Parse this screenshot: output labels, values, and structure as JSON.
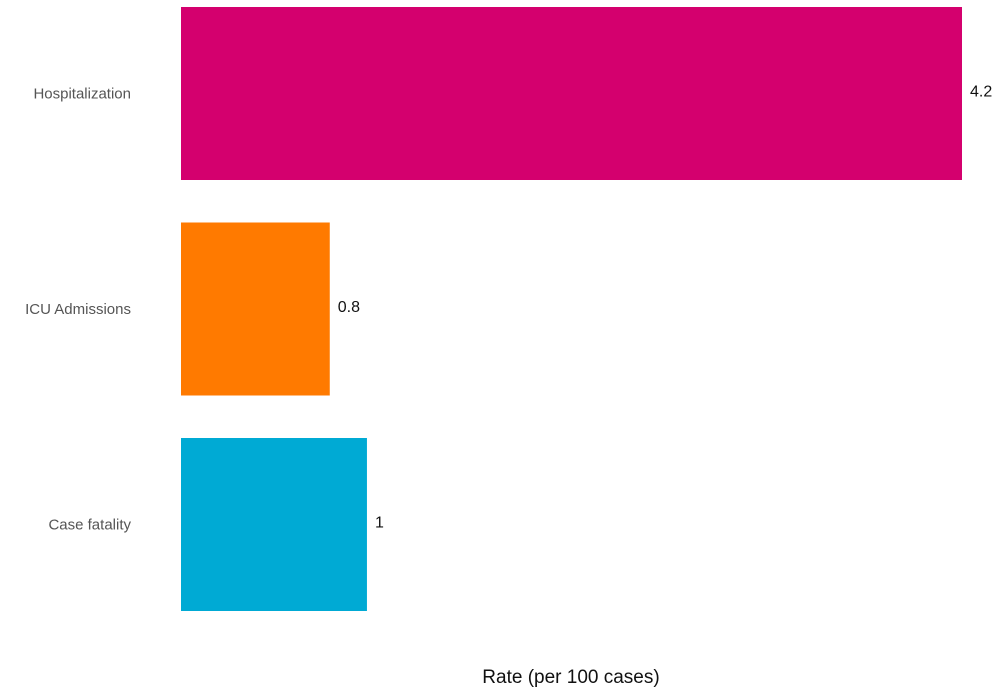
{
  "chart_data": {
    "type": "bar",
    "orientation": "horizontal",
    "categories": [
      "Hospitalization",
      "ICU Admissions",
      "Case fatality"
    ],
    "values": [
      4.2,
      0.8,
      1
    ],
    "value_labels": [
      "4.2",
      "0.8",
      "1"
    ],
    "colors": [
      "#d4006e",
      "#ff7a00",
      "#00aad4"
    ],
    "title": "",
    "xlabel": "Rate (per 100 cases)",
    "ylabel": "",
    "xlim": [
      0,
      4.2
    ],
    "grid": false,
    "legend": "none"
  }
}
